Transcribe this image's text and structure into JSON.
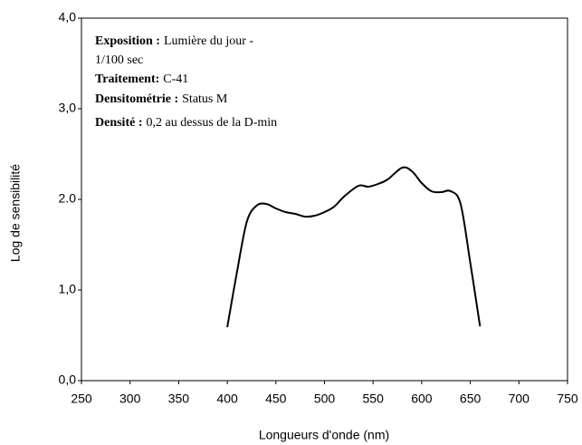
{
  "chart_data": {
    "type": "line",
    "x_label": "Longueurs d'onde (nm)",
    "y_label": "Log de sensibilité",
    "annotation": [
      {
        "bold": "Exposition :",
        "text": "Lumière du jour -"
      },
      {
        "text": "1/100 sec"
      },
      {
        "bold": "Traitement:",
        "text": "C-41"
      },
      {
        "bold": "Densitométrie :",
        "text": "Status M"
      },
      {
        "bold": "Densité :",
        "text": "0,2 au dessus de la D-min"
      }
    ],
    "x": [
      400,
      410,
      420,
      430,
      440,
      450,
      460,
      470,
      480,
      490,
      500,
      510,
      520,
      535,
      545,
      555,
      565,
      580,
      590,
      600,
      610,
      620,
      630,
      640,
      650,
      660
    ],
    "series": [
      {
        "name": "Log de sensibilité",
        "color": "#000000",
        "values": [
          0.59,
          1.2,
          1.75,
          1.93,
          1.95,
          1.9,
          1.86,
          1.84,
          1.81,
          1.82,
          1.86,
          1.92,
          2.03,
          2.15,
          2.14,
          2.17,
          2.22,
          2.35,
          2.31,
          2.18,
          2.09,
          2.08,
          2.09,
          1.95,
          1.3,
          0.6
        ]
      }
    ],
    "xlim": [
      250,
      750
    ],
    "xticks": [
      250,
      300,
      350,
      400,
      450,
      500,
      550,
      600,
      650,
      700,
      750
    ],
    "ylim": [
      0,
      4
    ],
    "yticks": [
      {
        "value": 0,
        "label": "0,0"
      },
      {
        "value": 1,
        "label": "1,0"
      },
      {
        "value": 2,
        "label": "2.0"
      },
      {
        "value": 3,
        "label": "3,0"
      },
      {
        "value": 4,
        "label": "4,0"
      }
    ],
    "grid": false
  }
}
